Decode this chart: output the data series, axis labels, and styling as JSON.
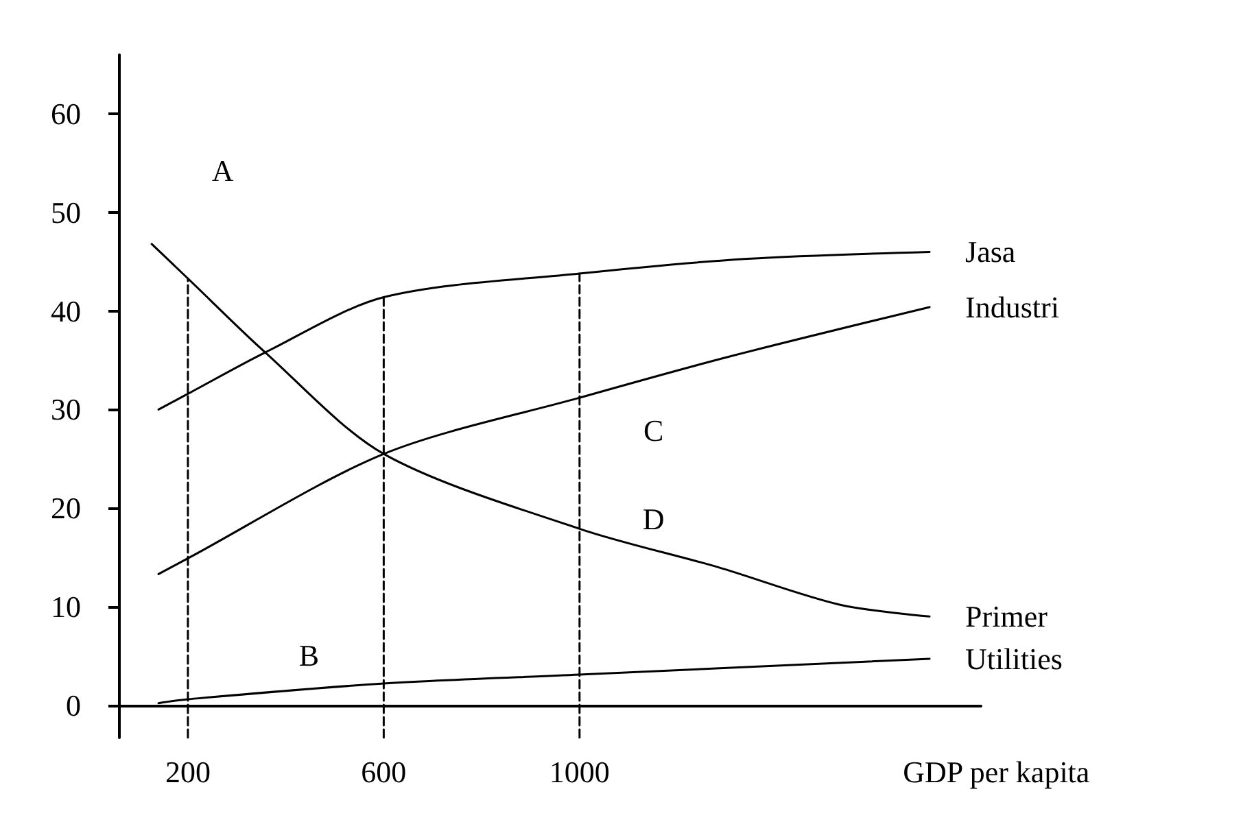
{
  "chart_data": {
    "type": "line",
    "xlabel": "GDP per kapita",
    "xlim": [
      60,
      1820
    ],
    "xticks": [
      200,
      600,
      1000
    ],
    "ylim": [
      -3.3,
      66
    ],
    "yticks": [
      0,
      10,
      20,
      30,
      40,
      50,
      60
    ],
    "marker": "none",
    "line_style": "solid",
    "series": [
      {
        "name": "Jasa",
        "color": "#000000",
        "x": [
          140,
          200,
          358,
          600,
          1000,
          1343,
          1715
        ],
        "values": [
          30,
          31.6,
          35.8,
          41.4,
          43.8,
          45.3,
          46
        ]
      },
      {
        "name": "Industri",
        "color": "#000000",
        "x": [
          140,
          200,
          600,
          1000,
          1300,
          1715
        ],
        "values": [
          13.3,
          14.9,
          25.5,
          31.2,
          35.3,
          40.4
        ]
      },
      {
        "name": "Primer",
        "color": "#000000",
        "x": [
          126,
          200,
          358,
          600,
          1000,
          1283,
          1531,
          1715
        ],
        "values": [
          46.8,
          43.3,
          35.8,
          25.5,
          17.9,
          14,
          10.2,
          9
        ]
      },
      {
        "name": "Utilities",
        "color": "#000000",
        "x": [
          140,
          200,
          600,
          1000,
          1715
        ],
        "values": [
          0.2,
          0.6,
          2.2,
          3.1,
          4.7
        ]
      },
      {
        "type": "line",
        "color": "#000000",
        "line_style": "dashed",
        "x": [
          200,
          200
        ],
        "values": [
          -3.3,
          43.3
        ]
      },
      {
        "type": "line",
        "color": "#000000",
        "line_style": "dashed",
        "x": [
          600,
          600
        ],
        "values": [
          -3.3,
          41.4
        ]
      },
      {
        "type": "line",
        "color": "#000000",
        "line_style": "dashed",
        "x": [
          1000,
          1000
        ],
        "values": [
          -3.3,
          43.8
        ]
      }
    ],
    "annotations": [
      "A",
      "B",
      "C",
      "D"
    ]
  }
}
